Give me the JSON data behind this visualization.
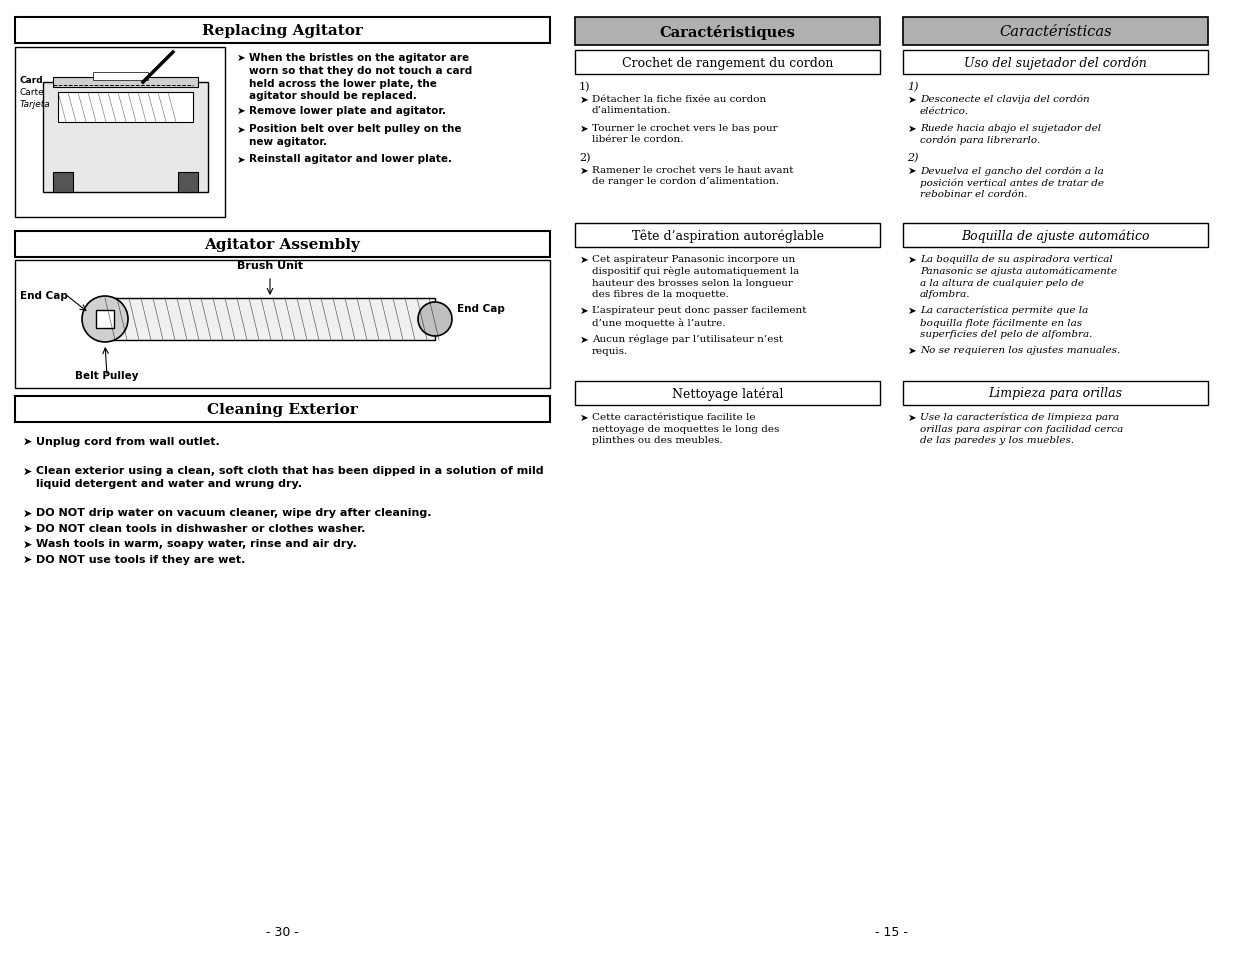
{
  "bg_color": "#ffffff",
  "left_page": {
    "replacing_bullets": [
      "When the bristles on the agitator are\nworn so that they do not touch a card\nheld across the lower plate, the\nagitator should be replaced.",
      "Remove lower plate and agitator.",
      "Position belt over belt pulley on the\nnew agitator.",
      "Reinstall agitator and lower plate."
    ],
    "cleaning_bullets": [
      "Unplug cord from wall outlet.",
      "Clean exterior using a clean, soft cloth that has been dipped in a solution of mild\nliquid detergent and water and wrung dry.",
      "DO NOT drip water on vacuum cleaner, wipe dry after cleaning.",
      "DO NOT clean tools in dishwasher or clothes washer.",
      "Wash tools in warm, soapy water, rinse and air dry.",
      "DO NOT use tools if they are wet."
    ],
    "page_number": "- 30 -"
  },
  "right_page": {
    "col1_header": "Caractéristiques",
    "col2_header": "Caractérísticas",
    "sections": [
      {
        "subheader1": "Crochet de rangement du cordon",
        "subheader2": "Uso del sujetador del cordón",
        "col1_items": [
          {
            "num": "1)",
            "bullets": [
              "Détacher la fiche fixée au cordon\nd’alimentation.",
              "Tourner le crochet vers le bas pour\nlibérer le cordon."
            ]
          },
          {
            "num": "2)",
            "bullets": [
              "Ramener le crochet vers le haut avant\nde ranger le cordon d’alimentation."
            ]
          }
        ],
        "col2_items": [
          {
            "num": "1)",
            "bullets": [
              "Desconecte el clavija del cordón\neléctrico.",
              "Ruede hacia abajo el sujetador del\ncordón para librerarlo."
            ]
          },
          {
            "num": "2)",
            "bullets": [
              "Devuelva el gancho del cordón a la\nposición vertical antes de tratar de\nrebobinar el cordón."
            ]
          }
        ]
      },
      {
        "subheader1": "Tête d’aspiration autoréglable",
        "subheader2": "Boquilla de ajuste automático",
        "col1_items": [
          {
            "num": null,
            "bullets": [
              "Cet aspirateur Panasonic incorpore un\ndispositif qui règle automatiquement la\nhauteur des brosses selon la longueur\ndes fibres de la moquette.",
              "L’aspirateur peut donc passer facilement\nd’une moquette à l’autre.",
              "Aucun réglage par l’utilisateur n’est\nrequis."
            ]
          }
        ],
        "col2_items": [
          {
            "num": null,
            "bullets": [
              "La boquilla de su aspiradora vertical\nPanasonic se ajusta automáticamente\na la altura de cualquier pelo de\nalfombra.",
              "La característica permite que la\nboquilla flote fácilmente en las\nsuperficies del pelo de alfombra.",
              "No se requieren los ajustes manuales."
            ]
          }
        ]
      },
      {
        "subheader1": "Nettoyage latéral",
        "subheader2": "Limpieza para orillas",
        "col1_items": [
          {
            "num": null,
            "bullets": [
              "Cette caractéristique facilite le\nnettoyage de moquettes le long des\nplinthes ou des meubles."
            ]
          }
        ],
        "col2_items": [
          {
            "num": null,
            "bullets": [
              "Use la característica de limpieza para\norillas para aspirar con facilidad cerca\nde las paredes y los muebles."
            ]
          }
        ]
      }
    ],
    "page_number": "- 15 -"
  }
}
